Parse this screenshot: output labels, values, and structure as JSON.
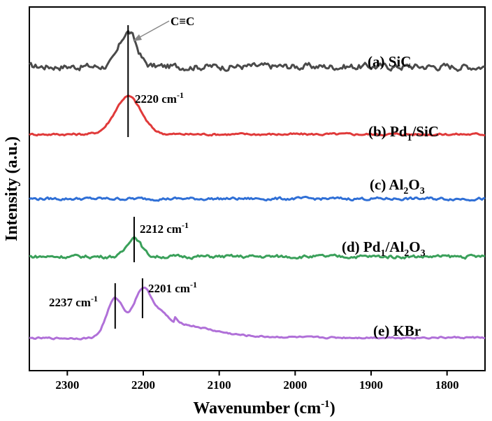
{
  "chart_data": {
    "type": "line",
    "xlabel": "Wavenumber (cm",
    "xlabel_sup": "-1",
    "xlabel_close": ")",
    "ylabel": "Intensity (a.u.)",
    "xlim": [
      2350,
      1750
    ],
    "x_reversed": true,
    "x_ticks": [
      2300,
      2200,
      2100,
      2000,
      1900,
      1800
    ],
    "y_ticks": "none",
    "grid": false,
    "legend": "inline labels to the right of each trace",
    "series": [
      {
        "label_parts": [
          "(a) SiC"
        ],
        "color": "#4a4a4a",
        "baseline": 9.2,
        "noise": 0.12,
        "peaks": [
          {
            "x": 2220,
            "height": 1.05,
            "width": 11
          }
        ]
      },
      {
        "label_parts": [
          "(b) Pd",
          "1",
          "/SiC"
        ],
        "label_sub_index": [
          1
        ],
        "color": "#e03a3a",
        "baseline": 7.15,
        "noise": 0.04,
        "peaks": [
          {
            "x": 2220,
            "height": 1.15,
            "width": 17
          }
        ]
      },
      {
        "label_parts": [
          "(c) Al",
          "2",
          "O",
          "3"
        ],
        "label_sub_index": [
          1,
          3
        ],
        "color": "#2f6fd6",
        "baseline": 5.2,
        "noise": 0.05,
        "peaks": []
      },
      {
        "label_parts": [
          "(d) Pd",
          "1",
          "/Al",
          "2",
          "O",
          "3"
        ],
        "label_sub_index": [
          1,
          3,
          5
        ],
        "color": "#3aa05a",
        "baseline": 3.45,
        "noise": 0.06,
        "peaks": [
          {
            "x": 2212,
            "height": 0.6,
            "width": 9
          }
        ]
      },
      {
        "label_parts": [
          "(e) KBr"
        ],
        "color": "#b070d8",
        "baseline": 1.0,
        "noise": 0.03,
        "peaks": [
          {
            "x": 2237,
            "height": 1.15,
            "width": 11
          },
          {
            "x": 2201,
            "height": 1.35,
            "width": 12
          },
          {
            "x": 2175,
            "height": 0.45,
            "width": 12
          },
          {
            "x": 2150,
            "height": 0.25,
            "width": 40
          }
        ]
      }
    ],
    "annotations": [
      {
        "x": 2220,
        "text": "C≡C",
        "type": "arrow-label"
      },
      {
        "x": 2220,
        "text": "2220 cm",
        "sup": "-1"
      },
      {
        "x": 2212,
        "text": "2212 cm",
        "sup": "-1"
      },
      {
        "x": 2237,
        "text": "2237 cm",
        "sup": "-1"
      },
      {
        "x": 2201,
        "text": "2201 cm",
        "sup": "-1"
      }
    ]
  }
}
